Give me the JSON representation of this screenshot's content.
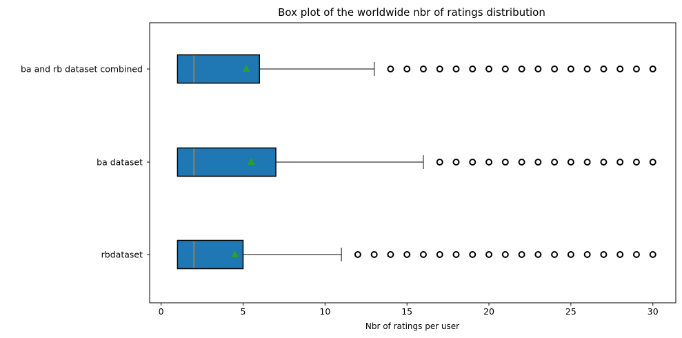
{
  "chart_data": {
    "type": "boxplot",
    "orientation": "horizontal",
    "title": "Box plot of the worldwide nbr of ratings distribution",
    "xlabel": "Nbr of ratings per user",
    "ylabel": "",
    "xlim": [
      -0.7,
      31.4
    ],
    "xticks": [
      0,
      5,
      10,
      15,
      20,
      25,
      30
    ],
    "categories": [
      "ba and rb dataset combined",
      "ba dataset",
      "rbdataset"
    ],
    "boxes": [
      {
        "label": "ba and rb dataset combined",
        "whislo": 1,
        "q1": 1,
        "med": 2,
        "q3": 6,
        "whishi": 13,
        "mean": 5.2,
        "fliers": [
          14,
          15,
          16,
          17,
          18,
          19,
          20,
          21,
          22,
          23,
          24,
          25,
          26,
          27,
          28,
          29,
          30
        ]
      },
      {
        "label": "ba dataset",
        "whislo": 1,
        "q1": 1,
        "med": 2,
        "q3": 7,
        "whishi": 16,
        "mean": 5.5,
        "fliers": [
          17,
          18,
          19,
          20,
          21,
          22,
          23,
          24,
          25,
          26,
          27,
          28,
          29,
          30
        ]
      },
      {
        "label": "rbdataset",
        "whislo": 1,
        "q1": 1,
        "med": 2,
        "q3": 5,
        "whishi": 11,
        "mean": 4.5,
        "fliers": [
          12,
          13,
          14,
          15,
          16,
          17,
          18,
          19,
          20,
          21,
          22,
          23,
          24,
          25,
          26,
          27,
          28,
          29,
          30
        ]
      }
    ],
    "grid": false,
    "colors": {
      "box_fill": "#1f77b4",
      "median": "#ff7f0e",
      "mean_marker": "#2ca02c",
      "outline": "#000000"
    }
  }
}
